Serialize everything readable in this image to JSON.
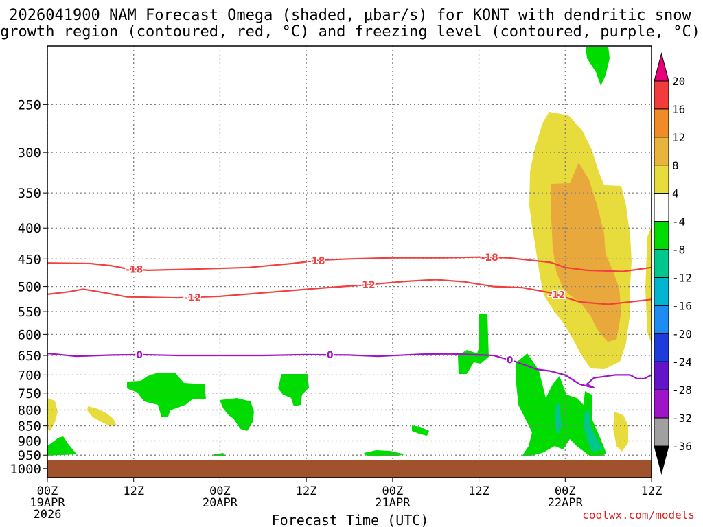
{
  "chart_data": {
    "type": "heatmap",
    "title_line1": "2026041900 NAM Forecast Omega (shaded, μbar/s) for KONT with dendritic snow",
    "title_line2": "growth region (contoured, red, °C) and freezing level (contoured, purple, °C)",
    "xlabel": "Forecast Time (UTC)",
    "credit": "coolwx.com/models",
    "x_range_hours": [
      0,
      84
    ],
    "x_ticks": [
      {
        "hour": 0,
        "label": "00Z",
        "date": "19APR",
        "year": "2026"
      },
      {
        "hour": 12,
        "label": "12Z",
        "date": "",
        "year": ""
      },
      {
        "hour": 24,
        "label": "00Z",
        "date": "20APR",
        "year": ""
      },
      {
        "hour": 36,
        "label": "12Z",
        "date": "",
        "year": ""
      },
      {
        "hour": 48,
        "label": "00Z",
        "date": "21APR",
        "year": ""
      },
      {
        "hour": 60,
        "label": "12Z",
        "date": "",
        "year": ""
      },
      {
        "hour": 72,
        "label": "00Z",
        "date": "22APR",
        "year": ""
      },
      {
        "hour": 84,
        "label": "12Z",
        "date": "",
        "year": ""
      }
    ],
    "y_ticks_hpa": [
      250,
      300,
      350,
      400,
      450,
      500,
      550,
      600,
      650,
      700,
      750,
      800,
      850,
      900,
      950,
      1000
    ],
    "y_range_hpa": [
      200,
      1035
    ],
    "ground_level_hpa": 968,
    "colorbar": {
      "labels": [
        "20",
        "16",
        "12",
        "8",
        "4",
        "-4",
        "-8",
        "-12",
        "-16",
        "-20",
        "-24",
        "-28",
        "-32",
        "-36"
      ],
      "colors": [
        "#e8007a",
        "#f23c3c",
        "#f08c28",
        "#e8b43c",
        "#e8dc3c",
        "#ffffff",
        "#00dc00",
        "#00c88c",
        "#00b4d2",
        "#1e8cf0",
        "#1e3cdc",
        "#6414c8",
        "#a014c8",
        "#a0a0a0",
        "#000000"
      ]
    },
    "contours": [
      {
        "name": "-18",
        "label": "-18",
        "color": "#f04040",
        "points": [
          [
            0,
            457
          ],
          [
            6,
            458
          ],
          [
            9,
            462
          ],
          [
            11,
            467
          ],
          [
            14,
            470
          ],
          [
            20,
            468
          ],
          [
            28,
            465
          ],
          [
            34,
            458
          ],
          [
            38,
            452
          ],
          [
            42,
            450
          ],
          [
            48,
            448
          ],
          [
            55,
            448
          ],
          [
            60,
            447
          ],
          [
            64,
            448
          ],
          [
            70,
            456
          ],
          [
            72,
            465
          ],
          [
            75,
            470
          ],
          [
            80,
            472
          ],
          [
            84,
            465
          ]
        ],
        "labels_at_hours": [
          12.1,
          37.4,
          61.5
        ]
      },
      {
        "name": "-12",
        "label": "-12",
        "color": "#f04040",
        "points": [
          [
            0,
            515
          ],
          [
            3,
            510
          ],
          [
            5,
            505
          ],
          [
            8,
            512
          ],
          [
            11,
            520
          ],
          [
            18,
            522
          ],
          [
            24,
            519
          ],
          [
            30,
            512
          ],
          [
            38,
            503
          ],
          [
            44,
            497
          ],
          [
            50,
            490
          ],
          [
            54,
            487
          ],
          [
            58,
            491
          ],
          [
            62,
            500
          ],
          [
            66,
            502
          ],
          [
            70,
            512
          ],
          [
            74,
            530
          ],
          [
            78,
            535
          ],
          [
            84,
            525
          ]
        ],
        "labels_at_hours": [
          20.2,
          44.4,
          70.8
        ]
      },
      {
        "name": "freezing-0",
        "label": "0",
        "color": "#a014c8",
        "points": [
          [
            0,
            645
          ],
          [
            4,
            652
          ],
          [
            9,
            649
          ],
          [
            13,
            648
          ],
          [
            18,
            650
          ],
          [
            24,
            650
          ],
          [
            30,
            650
          ],
          [
            36,
            648
          ],
          [
            42,
            649
          ],
          [
            46,
            652
          ],
          [
            52,
            647
          ],
          [
            56,
            646
          ],
          [
            62,
            650
          ],
          [
            65,
            665
          ],
          [
            68,
            685
          ],
          [
            70,
            690
          ],
          [
            72,
            700
          ],
          [
            74,
            725
          ],
          [
            76,
            735
          ],
          [
            75,
            725
          ],
          [
            76,
            708
          ],
          [
            79,
            700
          ],
          [
            81,
            700
          ],
          [
            82,
            710
          ],
          [
            83,
            710
          ],
          [
            84,
            700
          ]
        ],
        "labels_at_hours": [
          12.8,
          39.3,
          64.3
        ]
      }
    ]
  }
}
